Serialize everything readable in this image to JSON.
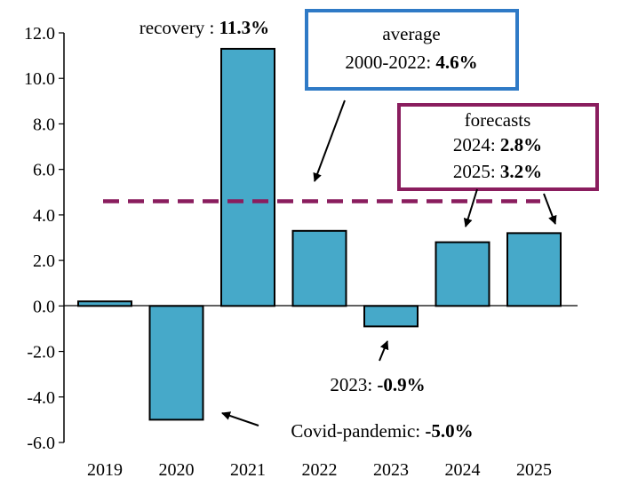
{
  "chart_data": {
    "type": "bar",
    "categories": [
      "2019",
      "2020",
      "2021",
      "2022",
      "2023",
      "2024",
      "2025"
    ],
    "values": [
      0.2,
      -5.0,
      11.3,
      3.3,
      -0.9,
      2.8,
      3.2
    ],
    "ylim": [
      -6.0,
      12.0
    ],
    "y_ticks": [
      "12.0",
      "10.0",
      "8.0",
      "6.0",
      "4.0",
      "2.0",
      "0.0",
      "-2.0",
      "-4.0",
      "-6.0"
    ],
    "average_line": 4.6,
    "grid": false,
    "colors": {
      "bar": "#46a9c9",
      "average_line": "#8a1d5e",
      "average_box": "#2f7ac6",
      "forecast_box": "#8a1d5e"
    },
    "annotations": {
      "recovery": {
        "label": "recovery : ",
        "value": "11.3%"
      },
      "average": {
        "line1": "average",
        "line2_label": "2000-2022: ",
        "line2_value": "4.6%"
      },
      "forecasts": {
        "title": "forecasts",
        "line1_label": "2024: ",
        "line1_value": "2.8%",
        "line2_label": "2025: ",
        "line2_value": "3.2%"
      },
      "y2023": {
        "label": "2023: ",
        "value": "-0.9%"
      },
      "covid": {
        "label": "Covid-pandemic: ",
        "value": "-5.0%"
      }
    }
  }
}
